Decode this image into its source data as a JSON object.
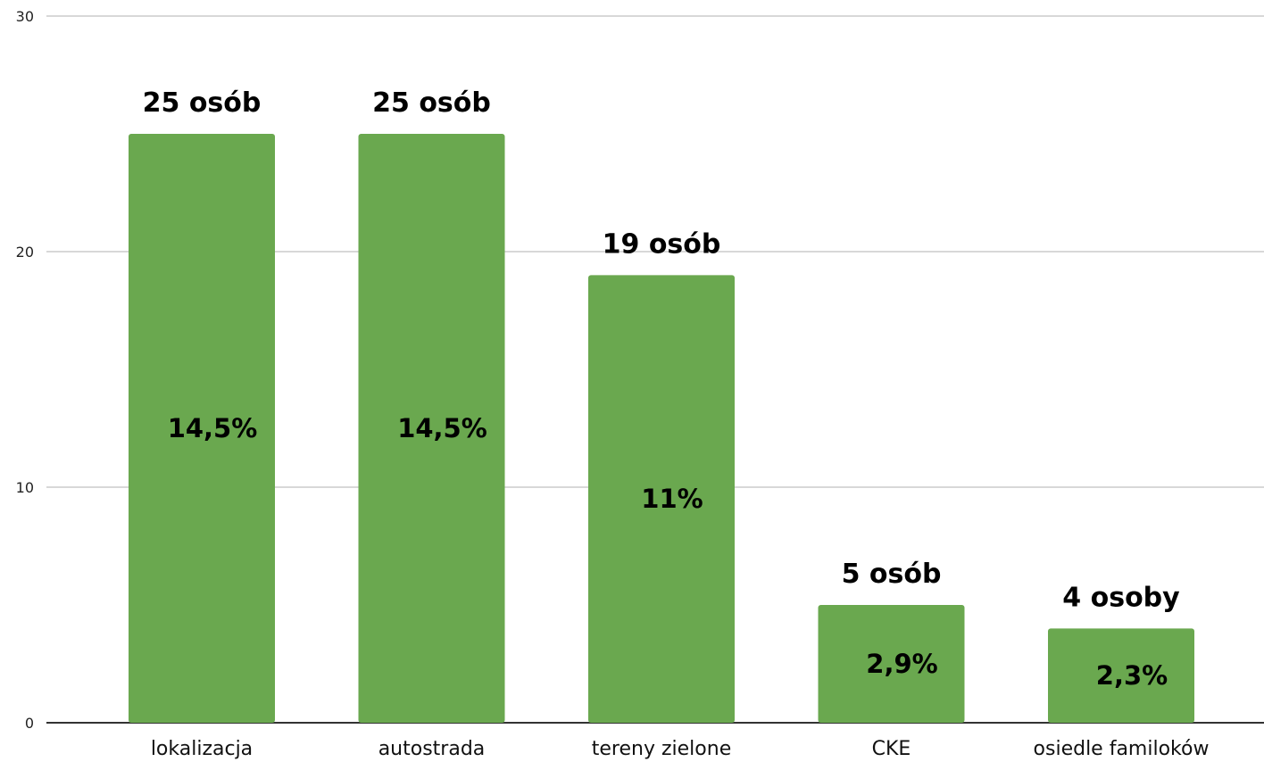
{
  "chart_data": {
    "type": "bar",
    "categories": [
      "lokalizacja",
      "autostrada",
      "tereny zielone",
      "CKE",
      "osiedle familoków"
    ],
    "values": [
      25,
      25,
      19,
      5,
      4
    ],
    "bar_labels": [
      "25 osób",
      "25 osób",
      "19 osób",
      "5 osób",
      "4 osoby"
    ],
    "inner_labels": [
      "14,5%",
      "14,5%",
      "11%",
      "2,9%",
      "2,3%"
    ],
    "ylim": [
      0,
      30
    ],
    "yticks": [
      0,
      10,
      20,
      30
    ],
    "ytick_labels": [
      "0",
      "10",
      "20",
      "30"
    ],
    "grid": true,
    "bar_color": "#6aa84f"
  }
}
